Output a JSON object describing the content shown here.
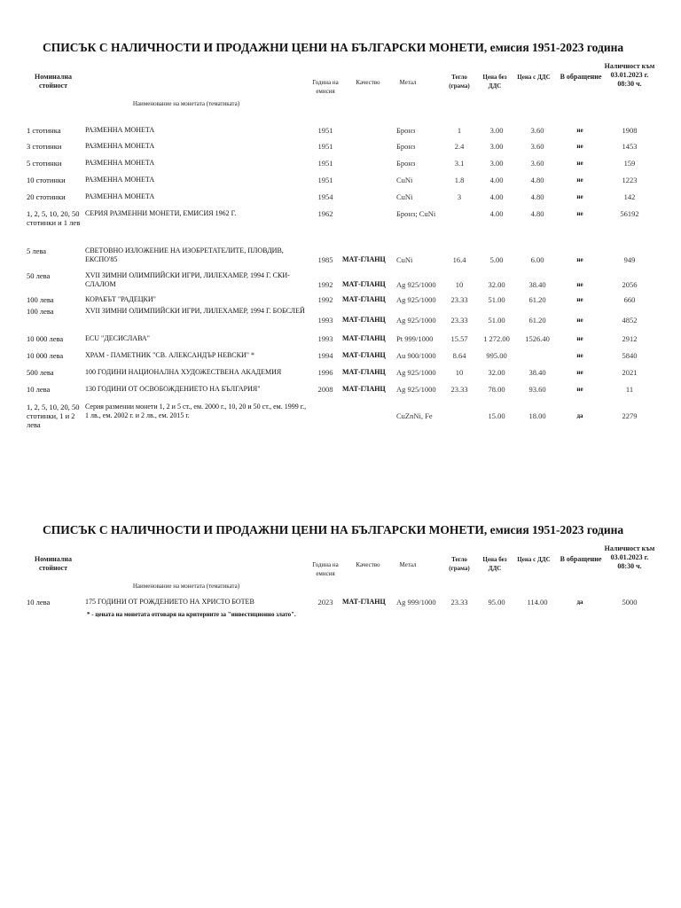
{
  "title": "СПИСЪК С НАЛИЧНОСТИ И ПРОДАЖНИ ЦЕНИ НА БЪЛГАРСКИ МОНЕТИ, емисия 1951-2023 година",
  "headers": {
    "nominal": "Номинална стойност",
    "name": "Наименование на монетата (тематиката)",
    "year": "Година на емисия",
    "quality": "Качество",
    "metal": "Метал",
    "weight": "Тегло (грама)",
    "price_no_vat": "Цена без ДДС",
    "price_vat": "Цена с ДДС",
    "circulation": "В обращение",
    "stock": "Наличност към 03.01.2023 г. 08:30 ч."
  },
  "rows": [
    {
      "nominal": "1 стотинка",
      "name": "РАЗМЕННА МОНЕТА",
      "year": "1951",
      "quality": "",
      "metal": "Бронз",
      "weight": "1",
      "price_no_vat": "3.00",
      "price_vat": "3.60",
      "circulation": "не",
      "stock": "1908"
    },
    {
      "nominal": "3 стотинки",
      "name": "РАЗМЕННА МОНЕТА",
      "year": "1951",
      "quality": "",
      "metal": "Бронз",
      "weight": "2.4",
      "price_no_vat": "3.00",
      "price_vat": "3.60",
      "circulation": "не",
      "stock": "1453"
    },
    {
      "nominal": "5 стотинки",
      "name": "РАЗМЕННА МОНЕТА",
      "year": "1951",
      "quality": "",
      "metal": "Бронз",
      "weight": "3.1",
      "price_no_vat": "3.00",
      "price_vat": "3.60",
      "circulation": "не",
      "stock": "159"
    },
    {
      "nominal": "10 стотинки",
      "name": "РАЗМЕННА МОНЕТА",
      "year": "1951",
      "quality": "",
      "metal": "CuNi",
      "weight": "1.8",
      "price_no_vat": "4.00",
      "price_vat": "4.80",
      "circulation": "не",
      "stock": "1223"
    },
    {
      "nominal": "20 стотинки",
      "name": "РАЗМЕННА МОНЕТА",
      "year": "1954",
      "quality": "",
      "metal": "CuNi",
      "weight": "3",
      "price_no_vat": "4.00",
      "price_vat": "4.80",
      "circulation": "не",
      "stock": "142"
    },
    {
      "nominal": "1, 2, 5, 10, 20, 50 стотинки и 1 лев",
      "name": "СЕРИЯ РАЗМЕННИ МОНЕТИ, ЕМИСИЯ 1962 Г.",
      "year": "1962",
      "quality": "",
      "metal": "Бронз; CuNi",
      "weight": "",
      "price_no_vat": "4.00",
      "price_vat": "4.80",
      "circulation": "не",
      "stock": "56192"
    },
    {
      "nominal": "5 лева",
      "name": "СВЕТОВНО ИЗЛОЖЕНИЕ НА ИЗОБРЕТАТЕЛИТЕ, ПЛОВДИВ, ЕКСПО'85",
      "year": "1985",
      "quality": "МАТ-ГЛАНЦ",
      "metal": "CuNi",
      "weight": "16.4",
      "price_no_vat": "5.00",
      "price_vat": "6.00",
      "circulation": "не",
      "stock": "949"
    },
    {
      "nominal": "50 лева",
      "name": "XVII ЗИМНИ ОЛИМПИЙСКИ ИГРИ, ЛИЛЕХАМЕР, 1994 Г. СКИ-СЛАЛОМ",
      "year": "1992",
      "quality": "МАТ-ГЛАНЦ",
      "metal": "Ag 925/1000",
      "weight": "10",
      "price_no_vat": "32.00",
      "price_vat": "38.40",
      "circulation": "не",
      "stock": "2056"
    },
    {
      "nominal": "100 лева",
      "name": "КОРАБЪТ \"РАДЕЦКИ\"",
      "year": "1992",
      "quality": "МАТ-ГЛАНЦ",
      "metal": "Ag 925/1000",
      "weight": "23.33",
      "price_no_vat": "51.00",
      "price_vat": "61.20",
      "circulation": "не",
      "stock": "660"
    },
    {
      "nominal": "100 лева",
      "name": "XVII ЗИМНИ ОЛИМПИЙСКИ ИГРИ, ЛИЛЕХАМЕР, 1994 Г. БОБСЛЕЙ",
      "year": "1993",
      "quality": "МАТ-ГЛАНЦ",
      "metal": "Ag 925/1000",
      "weight": "23.33",
      "price_no_vat": "51.00",
      "price_vat": "61.20",
      "circulation": "не",
      "stock": "4852"
    },
    {
      "nominal": "10 000 лева",
      "name": "ECU \"ДЕСИСЛАВА\"",
      "year": "1993",
      "quality": "МАТ-ГЛАНЦ",
      "metal": "Pt 999/1000",
      "weight": "15.57",
      "price_no_vat": "1 272.00",
      "price_vat": "1526.40",
      "circulation": "не",
      "stock": "2912"
    },
    {
      "nominal": "10 000 лева",
      "name": "ХРАМ - ПАМЕТНИК \"СВ. АЛЕКСАНДЪР НЕВСКИ\" *",
      "year": "1994",
      "quality": "МАТ-ГЛАНЦ",
      "metal": "Au 900/1000",
      "weight": "8.64",
      "price_no_vat": "995.00",
      "price_vat": "",
      "circulation": "не",
      "stock": "5840"
    },
    {
      "nominal": "500 лева",
      "name": "100 ГОДИНИ НАЦИОНАЛНА ХУДОЖЕСТВЕНА АКАДЕМИЯ",
      "year": "1996",
      "quality": "МАТ-ГЛАНЦ",
      "metal": "Ag 925/1000",
      "weight": "10",
      "price_no_vat": "32.00",
      "price_vat": "38.40",
      "circulation": "не",
      "stock": "2021"
    },
    {
      "nominal": "10 лева",
      "name": "130 ГОДИНИ ОТ ОСВОБОЖДЕНИЕТО НА БЪЛГАРИЯ\"",
      "year": "2008",
      "quality": "МАТ-ГЛАНЦ",
      "metal": "Ag 925/1000",
      "weight": "23.33",
      "price_no_vat": "78.00",
      "price_vat": "93.60",
      "circulation": "не",
      "stock": "11"
    },
    {
      "nominal": "1, 2, 5, 10, 20, 50 стотинки, 1 и 2 лева",
      "name": "Серия разменни монети 1, 2 и 5 ст., ем. 2000 г., 10, 20 и 50 ст., ем. 1999 г., 1 лв., ем. 2002 г. и 2 лв., ем. 2015 г.",
      "year": "",
      "quality": "",
      "metal": "CuZnNi, Fe",
      "weight": "",
      "price_no_vat": "15.00",
      "price_vat": "18.00",
      "circulation": "да",
      "stock": "2279"
    }
  ],
  "rows2": [
    {
      "nominal": "10 лева",
      "name": "175 ГОДИНИ ОТ РОЖДЕНИЕТО НА ХРИСТО БОТЕВ",
      "year": "2023",
      "quality": "МАТ-ГЛАНЦ",
      "metal": "Ag 999/1000",
      "weight": "23.33",
      "price_no_vat": "95.00",
      "price_vat": "114.00",
      "circulation": "да",
      "stock": "5000"
    }
  ],
  "footnote": "* - цената на монетата отговаря на критериите за \"инвестиционно злато\"."
}
